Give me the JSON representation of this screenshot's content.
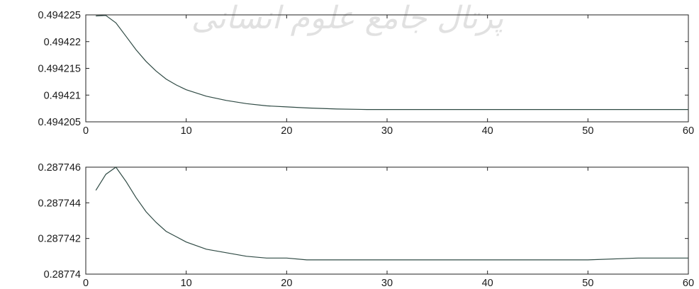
{
  "watermark": "پرتال جامع علوم انسانی",
  "chart_data": [
    {
      "type": "line",
      "title": "",
      "xlabel": "",
      "ylabel": "",
      "xlim": [
        0,
        60
      ],
      "ylim": [
        0.494205,
        0.494225
      ],
      "xticks": [
        0,
        10,
        20,
        30,
        40,
        50,
        60
      ],
      "xtick_labels": [
        "0",
        "10",
        "20",
        "30",
        "40",
        "50",
        "60"
      ],
      "yticks": [
        0.494225,
        0.49422,
        0.494215,
        0.49421,
        0.494205
      ],
      "ytick_labels": [
        "0.494225",
        "0.49422",
        "0.494215",
        "0.49421",
        "0.494205"
      ],
      "grid": false,
      "series": [
        {
          "x": [
            1,
            2,
            3,
            4,
            5,
            6,
            7,
            8,
            9,
            10,
            12,
            14,
            16,
            18,
            20,
            22,
            25,
            28,
            30,
            35,
            40,
            45,
            50,
            55,
            60
          ],
          "y": [
            0.4942248,
            0.4942249,
            0.4942235,
            0.494221,
            0.4942185,
            0.4942163,
            0.4942145,
            0.494213,
            0.4942119,
            0.494211,
            0.4942098,
            0.494209,
            0.4942084,
            0.494208,
            0.4942078,
            0.4942076,
            0.4942074,
            0.4942073,
            0.4942073,
            0.4942073,
            0.4942073,
            0.4942073,
            0.4942073,
            0.4942073,
            0.4942073
          ]
        }
      ]
    },
    {
      "type": "line",
      "title": "",
      "xlabel": "",
      "ylabel": "",
      "xlim": [
        0,
        60
      ],
      "ylim": [
        0.28774,
        0.287746
      ],
      "xticks": [
        0,
        10,
        20,
        30,
        40,
        50,
        60
      ],
      "xtick_labels": [
        "0",
        "10",
        "20",
        "30",
        "40",
        "50",
        "60"
      ],
      "yticks": [
        0.287746,
        0.287744,
        0.287742,
        0.28774
      ],
      "ytick_labels": [
        "0.287746",
        "0.287744",
        "0.287742",
        "0.28774"
      ],
      "grid": false,
      "series": [
        {
          "x": [
            1,
            2,
            3,
            4,
            5,
            6,
            7,
            8,
            9,
            10,
            12,
            14,
            16,
            18,
            20,
            22,
            25,
            28,
            30,
            35,
            40,
            45,
            50,
            55,
            60
          ],
          "y": [
            0.2877447,
            0.2877456,
            0.287746,
            0.2877452,
            0.2877443,
            0.2877435,
            0.2877429,
            0.2877424,
            0.2877421,
            0.2877418,
            0.2877414,
            0.2877412,
            0.287741,
            0.2877409,
            0.2877409,
            0.2877408,
            0.2877408,
            0.2877408,
            0.2877408,
            0.2877408,
            0.2877408,
            0.2877408,
            0.2877408,
            0.2877409,
            0.2877409
          ]
        }
      ]
    }
  ]
}
